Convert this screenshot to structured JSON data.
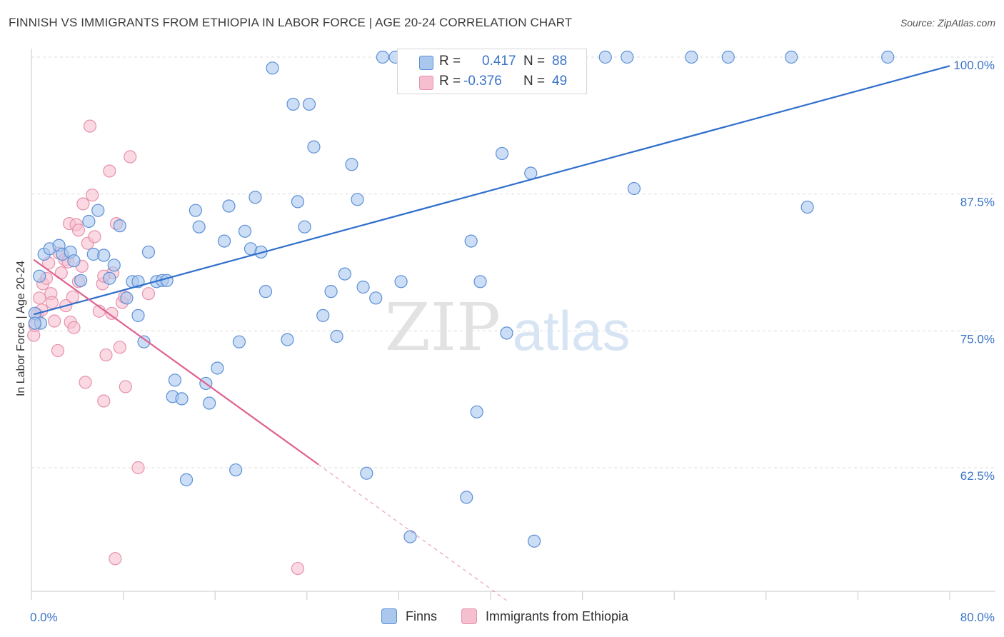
{
  "title": "FINNISH VS IMMIGRANTS FROM ETHIOPIA IN LABOR FORCE | AGE 20-24 CORRELATION CHART",
  "source": "Source: ZipAtlas.com",
  "watermark": {
    "zip": "ZIP",
    "atlas": "atlas"
  },
  "colors": {
    "finns_fill": "#aac8ee",
    "finns_stroke": "#5b8fd6",
    "finns_line": "#2f6fcc",
    "eth_fill": "#f6bfd0",
    "eth_stroke": "#e692ad",
    "eth_line": "#e0608f",
    "tick_label": "#3a74c8",
    "grid": "#dcdcdc"
  },
  "legend": {
    "finns": {
      "r_label": "R =",
      "r_value": "0.417",
      "n_label": "N =",
      "n_value": "88"
    },
    "eth": {
      "r_label": "R =",
      "r_value": "-0.376",
      "n_label": "N =",
      "n_value": "49"
    }
  },
  "bottom_legend": {
    "finns": "Finns",
    "eth": "Immigrants from Ethiopia"
  },
  "chart_data": {
    "type": "scatter",
    "ylabel": "In Labor Force | Age 20-24",
    "xlim": [
      0,
      80
    ],
    "ylim": [
      52,
      100
    ],
    "x_tick_labels": [
      {
        "value": 0,
        "label": "0.0%"
      },
      {
        "value": 80,
        "label": "80.0%"
      }
    ],
    "y_tick_labels": [
      {
        "value": 100,
        "label": "100.0%"
      },
      {
        "value": 87.5,
        "label": "87.5%"
      },
      {
        "value": 75,
        "label": "75.0%"
      },
      {
        "value": 62.5,
        "label": "62.5%"
      }
    ],
    "series": [
      {
        "name": "Finns",
        "trend": {
          "x": [
            0.2,
            80
          ],
          "y": [
            76.5,
            99.2
          ]
        },
        "points": [
          [
            0.3,
            76.6
          ],
          [
            0.7,
            80.0
          ],
          [
            0.8,
            75.7
          ],
          [
            1.1,
            82.0
          ],
          [
            1.6,
            82.5
          ],
          [
            2.4,
            82.8
          ],
          [
            2.7,
            82.0
          ],
          [
            3.4,
            82.2
          ],
          [
            3.7,
            81.4
          ],
          [
            4.3,
            79.6
          ],
          [
            5.0,
            85.0
          ],
          [
            5.4,
            82.0
          ],
          [
            5.8,
            86.0
          ],
          [
            6.3,
            81.9
          ],
          [
            6.8,
            79.8
          ],
          [
            7.2,
            81.0
          ],
          [
            7.7,
            84.6
          ],
          [
            8.3,
            78.0
          ],
          [
            8.8,
            79.5
          ],
          [
            9.3,
            76.4
          ],
          [
            9.8,
            74.0
          ],
          [
            10.2,
            82.2
          ],
          [
            10.9,
            79.5
          ],
          [
            11.4,
            79.6
          ],
          [
            11.8,
            79.6
          ],
          [
            12.5,
            70.5
          ],
          [
            12.3,
            69.0
          ],
          [
            13.1,
            68.8
          ],
          [
            13.5,
            61.4
          ],
          [
            14.3,
            86.0
          ],
          [
            14.6,
            84.5
          ],
          [
            15.2,
            70.2
          ],
          [
            15.5,
            68.4
          ],
          [
            16.2,
            71.6
          ],
          [
            16.8,
            83.2
          ],
          [
            17.2,
            86.4
          ],
          [
            17.8,
            62.3
          ],
          [
            18.1,
            74.0
          ],
          [
            18.6,
            84.1
          ],
          [
            19.1,
            82.5
          ],
          [
            19.5,
            87.2
          ],
          [
            20.0,
            82.2
          ],
          [
            20.4,
            78.6
          ],
          [
            21.0,
            99.0
          ],
          [
            22.3,
            74.2
          ],
          [
            22.8,
            95.7
          ],
          [
            23.2,
            86.8
          ],
          [
            23.8,
            84.5
          ],
          [
            24.2,
            95.7
          ],
          [
            24.6,
            91.8
          ],
          [
            25.4,
            76.4
          ],
          [
            26.1,
            78.6
          ],
          [
            26.6,
            74.5
          ],
          [
            27.3,
            80.2
          ],
          [
            27.9,
            90.2
          ],
          [
            28.4,
            87.0
          ],
          [
            28.9,
            79.0
          ],
          [
            29.2,
            62.0
          ],
          [
            30.0,
            78.0
          ],
          [
            30.6,
            100.0
          ],
          [
            31.7,
            100.0
          ],
          [
            32.2,
            79.5
          ],
          [
            33.0,
            56.2
          ],
          [
            34.6,
            100.0
          ],
          [
            35.2,
            100.0
          ],
          [
            37.2,
            100.0
          ],
          [
            37.6,
            100.0
          ],
          [
            37.9,
            59.8
          ],
          [
            38.3,
            83.2
          ],
          [
            38.8,
            67.6
          ],
          [
            39.1,
            79.5
          ],
          [
            39.5,
            100.0
          ],
          [
            41.0,
            91.2
          ],
          [
            41.4,
            74.8
          ],
          [
            42.6,
            100.0
          ],
          [
            43.5,
            89.4
          ],
          [
            43.8,
            55.8
          ],
          [
            44.6,
            100.0
          ],
          [
            50.0,
            100.0
          ],
          [
            51.9,
            100.0
          ],
          [
            52.5,
            88.0
          ],
          [
            57.5,
            100.0
          ],
          [
            60.7,
            100.0
          ],
          [
            66.2,
            100.0
          ],
          [
            67.6,
            86.3
          ],
          [
            74.6,
            100.0
          ],
          [
            0.3,
            75.7
          ],
          [
            9.3,
            79.5
          ]
        ]
      },
      {
        "name": "Immigrants from Ethiopia",
        "trend": {
          "x": [
            0.2,
            25.0
          ],
          "y": [
            81.5,
            62.8
          ]
        },
        "trend_dashed": {
          "x": [
            25.0,
            41.5
          ],
          "y": [
            62.8,
            50.3
          ]
        },
        "points": [
          [
            0.2,
            74.6
          ],
          [
            0.3,
            75.5
          ],
          [
            0.5,
            76.5
          ],
          [
            0.7,
            78.0
          ],
          [
            0.9,
            76.9
          ],
          [
            1.0,
            79.3
          ],
          [
            1.3,
            79.8
          ],
          [
            1.5,
            81.2
          ],
          [
            1.7,
            78.4
          ],
          [
            1.8,
            77.6
          ],
          [
            2.0,
            75.9
          ],
          [
            2.4,
            82.1
          ],
          [
            2.3,
            73.2
          ],
          [
            2.6,
            80.3
          ],
          [
            2.9,
            81.5
          ],
          [
            3.0,
            77.3
          ],
          [
            3.3,
            84.8
          ],
          [
            3.4,
            75.8
          ],
          [
            3.6,
            78.1
          ],
          [
            3.7,
            75.3
          ],
          [
            3.9,
            84.7
          ],
          [
            4.1,
            79.5
          ],
          [
            4.1,
            84.2
          ],
          [
            4.4,
            80.9
          ],
          [
            4.5,
            86.6
          ],
          [
            4.7,
            70.3
          ],
          [
            4.9,
            83.0
          ],
          [
            5.1,
            93.7
          ],
          [
            5.3,
            87.4
          ],
          [
            5.5,
            83.6
          ],
          [
            5.9,
            76.8
          ],
          [
            6.2,
            79.3
          ],
          [
            6.3,
            68.6
          ],
          [
            6.5,
            72.8
          ],
          [
            6.8,
            89.6
          ],
          [
            7.0,
            76.6
          ],
          [
            7.1,
            80.3
          ],
          [
            7.4,
            84.8
          ],
          [
            7.7,
            73.5
          ],
          [
            7.9,
            77.6
          ],
          [
            8.1,
            78.1
          ],
          [
            8.2,
            69.9
          ],
          [
            8.6,
            90.9
          ],
          [
            9.3,
            62.5
          ],
          [
            10.2,
            78.4
          ],
          [
            7.3,
            54.2
          ],
          [
            23.2,
            53.3
          ],
          [
            6.3,
            80.0
          ],
          [
            3.2,
            81.3
          ]
        ]
      }
    ]
  }
}
